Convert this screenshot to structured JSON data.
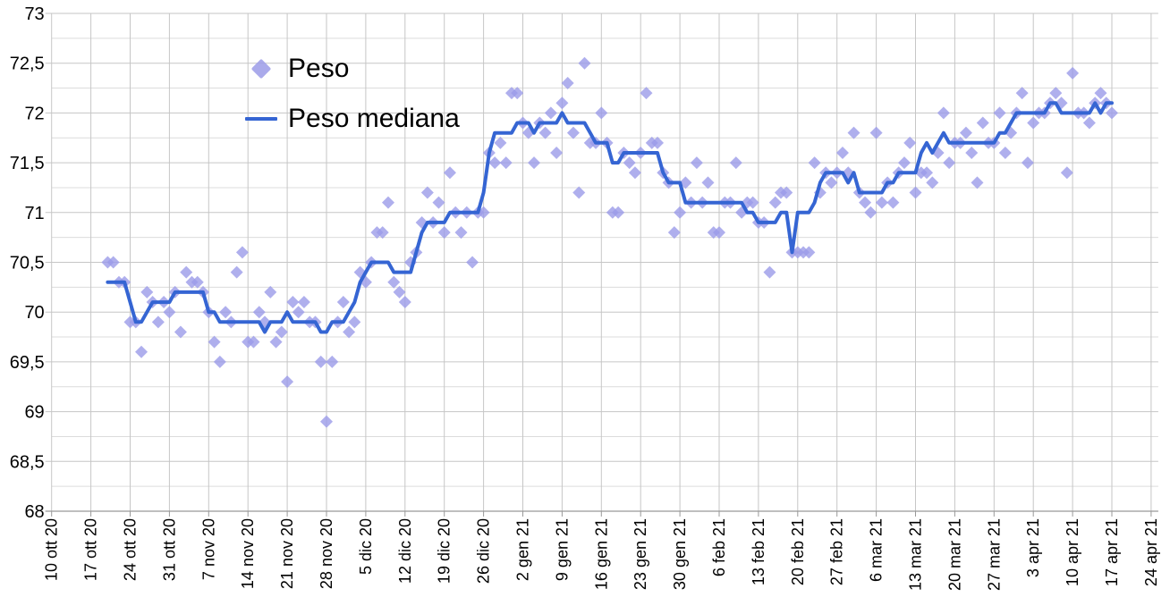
{
  "chart_data": {
    "type": "scatter",
    "title": "",
    "xlabel": "",
    "ylabel": "",
    "x_axis": {
      "day0_label": "10 ott 20",
      "tick_interval_days": 7,
      "range_days": [
        0,
        196
      ],
      "tick_labels": [
        "10 ott 20",
        "17 ott 20",
        "24 ott 20",
        "31 ott 20",
        "7 nov 20",
        "14 nov 20",
        "21 nov 20",
        "28 nov 20",
        "5 dic 20",
        "12 dic 20",
        "19 dic 20",
        "26 dic 20",
        "2 gen 21",
        "9 gen 21",
        "16 gen 21",
        "23 gen 21",
        "30 gen 21",
        "6 feb 21",
        "13 feb 21",
        "20 feb 21",
        "27 feb 21",
        "6 mar 21",
        "13 mar 21",
        "20 mar 21",
        "27 mar 21",
        "3 apr 21",
        "10 apr 21",
        "17 apr 21",
        "24 apr 21"
      ]
    },
    "y_axis": {
      "min": 68,
      "max": 73,
      "major_step": 0.5,
      "minor_step": 0.25,
      "tick_labels": [
        "68",
        "68,5",
        "69",
        "69,5",
        "70",
        "70,5",
        "71",
        "71,5",
        "72",
        "72,5",
        "73"
      ]
    },
    "legend": {
      "position": "top-left-inside"
    },
    "series": [
      {
        "name": "Peso",
        "type": "scatter",
        "marker": "diamond",
        "color": "#9b9be8",
        "start_day": 10,
        "values": [
          70.5,
          70.5,
          70.3,
          70.3,
          69.9,
          69.9,
          69.6,
          70.2,
          70.1,
          69.9,
          70.1,
          70.0,
          70.2,
          69.8,
          70.4,
          70.3,
          70.3,
          70.2,
          70.0,
          69.7,
          69.5,
          70.0,
          69.9,
          70.4,
          70.6,
          69.7,
          69.7,
          70.0,
          69.9,
          70.2,
          69.7,
          69.8,
          69.3,
          70.1,
          70.0,
          70.1,
          69.9,
          69.9,
          69.5,
          68.9,
          69.5,
          69.9,
          70.1,
          69.8,
          69.9,
          70.4,
          70.3,
          70.5,
          70.8,
          70.8,
          71.1,
          70.3,
          70.2,
          70.1,
          70.5,
          70.6,
          70.9,
          71.2,
          70.9,
          71.1,
          70.8,
          71.4,
          71.0,
          70.8,
          71.0,
          70.5,
          71.0,
          71.0,
          71.6,
          71.5,
          71.7,
          71.5,
          72.2,
          72.2,
          71.9,
          71.8,
          71.5,
          71.9,
          71.8,
          72.0,
          71.6,
          72.1,
          72.3,
          71.8,
          71.2,
          72.5,
          71.7,
          71.7,
          72.0,
          71.7,
          71.0,
          71.0,
          71.6,
          71.5,
          71.4,
          71.6,
          72.2,
          71.7,
          71.7,
          71.4,
          71.3,
          70.8,
          71.0,
          71.3,
          71.1,
          71.5,
          71.1,
          71.3,
          70.8,
          70.8,
          71.1,
          71.1,
          71.5,
          71.0,
          71.1,
          71.1,
          70.9,
          70.9,
          70.4,
          71.1,
          71.2,
          71.2,
          70.6,
          70.6,
          70.6,
          70.6,
          71.5,
          71.2,
          71.4,
          71.3,
          71.4,
          71.6,
          71.4,
          71.8,
          71.2,
          71.1,
          71.0,
          71.8,
          71.1,
          71.3,
          71.1,
          71.4,
          71.5,
          71.7,
          71.2,
          71.4,
          71.4,
          71.3,
          71.6,
          72.0,
          71.5,
          71.7,
          71.7,
          71.8,
          71.6,
          71.3,
          71.9,
          71.7,
          71.7,
          72.0,
          71.6,
          71.8,
          72.0,
          72.2,
          71.5,
          71.9,
          72.0,
          72.0,
          72.1,
          72.2,
          72.1,
          71.4,
          72.4,
          72.0,
          72.0,
          71.9,
          72.1,
          72.2,
          72.1,
          72.0
        ]
      },
      {
        "name": "Peso mediana",
        "type": "line",
        "color": "#3565d3",
        "start_day": 10,
        "values": [
          70.3,
          70.3,
          70.3,
          70.3,
          70.1,
          69.9,
          69.9,
          70.0,
          70.1,
          70.1,
          70.1,
          70.1,
          70.2,
          70.2,
          70.2,
          70.2,
          70.2,
          70.2,
          70.0,
          70.0,
          69.9,
          69.9,
          69.9,
          69.9,
          69.9,
          69.9,
          69.9,
          69.9,
          69.8,
          69.9,
          69.9,
          69.9,
          70.0,
          69.9,
          69.9,
          69.9,
          69.9,
          69.9,
          69.8,
          69.8,
          69.9,
          69.9,
          69.9,
          70.0,
          70.1,
          70.3,
          70.4,
          70.5,
          70.5,
          70.5,
          70.5,
          70.4,
          70.4,
          70.4,
          70.4,
          70.6,
          70.8,
          70.9,
          70.9,
          70.9,
          70.9,
          71.0,
          71.0,
          71.0,
          71.0,
          71.0,
          71.0,
          71.2,
          71.6,
          71.8,
          71.8,
          71.8,
          71.8,
          71.9,
          71.9,
          71.9,
          71.8,
          71.9,
          71.9,
          71.9,
          71.9,
          72.0,
          71.9,
          71.9,
          71.9,
          71.9,
          71.8,
          71.7,
          71.7,
          71.7,
          71.5,
          71.5,
          71.6,
          71.6,
          71.6,
          71.6,
          71.6,
          71.6,
          71.6,
          71.4,
          71.3,
          71.3,
          71.3,
          71.1,
          71.1,
          71.1,
          71.1,
          71.1,
          71.1,
          71.1,
          71.1,
          71.1,
          71.1,
          71.1,
          71.0,
          71.0,
          70.9,
          70.9,
          70.9,
          70.9,
          71.0,
          71.0,
          70.6,
          71.0,
          71.0,
          71.0,
          71.1,
          71.3,
          71.4,
          71.4,
          71.4,
          71.4,
          71.3,
          71.4,
          71.2,
          71.2,
          71.2,
          71.2,
          71.2,
          71.3,
          71.3,
          71.4,
          71.4,
          71.4,
          71.4,
          71.6,
          71.7,
          71.6,
          71.7,
          71.8,
          71.7,
          71.7,
          71.7,
          71.7,
          71.7,
          71.7,
          71.7,
          71.7,
          71.7,
          71.8,
          71.8,
          71.9,
          72.0,
          72.0,
          72.0,
          72.0,
          72.0,
          72.0,
          72.1,
          72.1,
          72.0,
          72.0,
          72.0,
          72.0,
          72.0,
          72.0,
          72.1,
          72.0,
          72.1,
          72.1
        ]
      }
    ],
    "colors": {
      "grid_major": "#c6c6c6",
      "grid_minor": "#dcdcdc",
      "axis": "#999999",
      "tick_text": "#000000"
    }
  }
}
